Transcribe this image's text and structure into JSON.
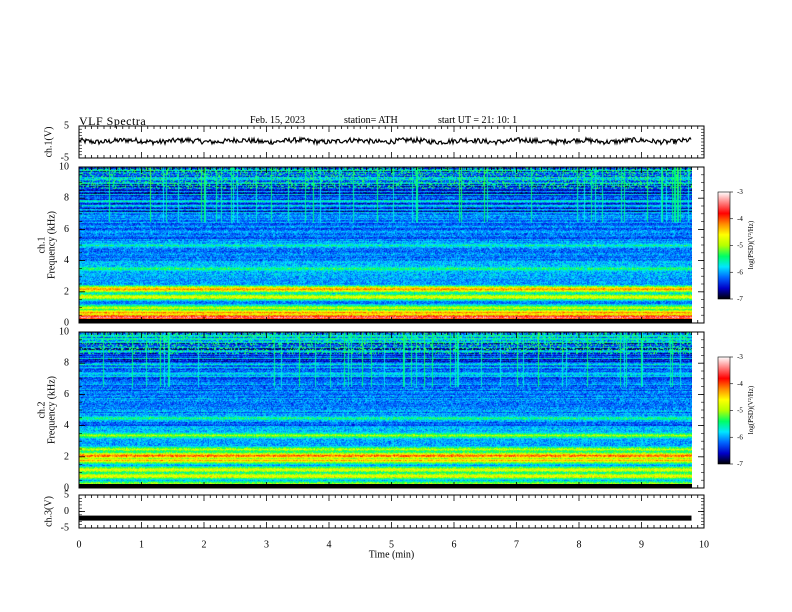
{
  "header": {
    "title": "VLF  Spectra",
    "date": "Feb. 15, 2023",
    "station": "station= ATH",
    "start_ut": "start  UT  =    21: 10: 1"
  },
  "colors": {
    "trace": "#000000",
    "colormap": [
      "#000000",
      "#0000c8",
      "#0064ff",
      "#00e6ff",
      "#00ff64",
      "#b4ff00",
      "#ffff00",
      "#ff8c00",
      "#ff0000",
      "#ff8080",
      "#ffffff"
    ]
  },
  "chart_data": [
    {
      "type": "line",
      "name": "ch1-waveform",
      "ylabel": "ch.1(V)",
      "ylim": [
        -5,
        5
      ],
      "yticks": [
        "5",
        "-5"
      ],
      "x_range_min": [
        0,
        9.8
      ],
      "level_v": 0.3,
      "grid": false
    },
    {
      "type": "heatmap",
      "name": "ch1-spectrogram",
      "ylabel": "ch.1\nFrequency  (kHz)",
      "ylim": [
        0,
        10
      ],
      "yticks": [
        "0",
        "2",
        "4",
        "6",
        "8",
        "10"
      ],
      "x_range_min": [
        0,
        9.8
      ],
      "colorbar": {
        "label": "log(PSD)(V²/Hz)",
        "range": [
          -7,
          -3
        ],
        "ticks": [
          "-3",
          "-4",
          "-5",
          "-6",
          "-7"
        ]
      },
      "bands_khz": [
        {
          "freq": 0.4,
          "level": 0.92
        },
        {
          "freq": 0.7,
          "level": 0.7
        },
        {
          "freq": 1.0,
          "level": 0.55
        },
        {
          "freq": 1.7,
          "level": 0.6
        },
        {
          "freq": 2.2,
          "level": 0.72
        },
        {
          "freq": 3.5,
          "level": 0.4
        },
        {
          "freq": 5.0,
          "level": 0.35
        }
      ]
    },
    {
      "type": "heatmap",
      "name": "ch2-spectrogram",
      "ylabel": "ch.2\nFrequency  (kHz)",
      "ylim": [
        0,
        10
      ],
      "yticks": [
        "0",
        "2",
        "4",
        "6",
        "8",
        "10"
      ],
      "x_range_min": [
        0,
        9.8
      ],
      "colorbar": {
        "label": "log(PSD)(V²/Hz)",
        "range": [
          -7,
          -3
        ],
        "ticks": [
          "-3",
          "-4",
          "-5",
          "-6",
          "-7"
        ]
      },
      "bands_khz": [
        {
          "freq": 0.3,
          "level": 0.5
        },
        {
          "freq": 0.8,
          "level": 0.62
        },
        {
          "freq": 1.2,
          "level": 0.6
        },
        {
          "freq": 1.8,
          "level": 0.66
        },
        {
          "freq": 2.1,
          "level": 0.75
        },
        {
          "freq": 2.5,
          "level": 0.52
        },
        {
          "freq": 3.4,
          "level": 0.5
        },
        {
          "freq": 4.5,
          "level": 0.38
        }
      ]
    },
    {
      "type": "line",
      "name": "ch3-waveform",
      "ylabel": "ch.3(V)",
      "ylim": [
        -5,
        5
      ],
      "yticks": [
        "5",
        "0",
        "-5"
      ],
      "x_range_min": [
        0,
        9.8
      ],
      "level_v": -2.0,
      "grid": false
    }
  ],
  "x_axis": {
    "label": "Time  (min)",
    "range": [
      0,
      10
    ],
    "ticks": [
      "0",
      "1",
      "2",
      "3",
      "4",
      "5",
      "6",
      "7",
      "8",
      "9",
      "10"
    ]
  }
}
